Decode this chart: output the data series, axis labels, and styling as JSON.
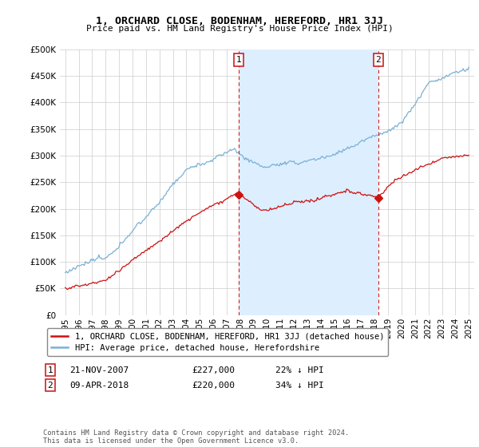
{
  "title": "1, ORCHARD CLOSE, BODENHAM, HEREFORD, HR1 3JJ",
  "subtitle": "Price paid vs. HM Land Registry's House Price Index (HPI)",
  "hpi_color": "#7ab0d4",
  "price_color": "#cc1111",
  "vline_color": "#cc2222",
  "ylim": [
    0,
    500000
  ],
  "yticks": [
    0,
    50000,
    100000,
    150000,
    200000,
    250000,
    300000,
    350000,
    400000,
    450000,
    500000
  ],
  "legend_label_price": "1, ORCHARD CLOSE, BODENHAM, HEREFORD, HR1 3JJ (detached house)",
  "legend_label_hpi": "HPI: Average price, detached house, Herefordshire",
  "annotation1_label": "1",
  "annotation1_date": "21-NOV-2007",
  "annotation1_price": "£227,000",
  "annotation1_pct": "22% ↓ HPI",
  "annotation1_year": 2007.89,
  "annotation1_value": 227000,
  "annotation2_label": "2",
  "annotation2_date": "09-APR-2018",
  "annotation2_price": "£220,000",
  "annotation2_pct": "34% ↓ HPI",
  "annotation2_year": 2018.27,
  "annotation2_value": 220000,
  "footer": "Contains HM Land Registry data © Crown copyright and database right 2024.\nThis data is licensed under the Open Government Licence v3.0.",
  "background_color": "#ffffff",
  "fill_color": "#ddeeff",
  "grid_color": "#cccccc"
}
